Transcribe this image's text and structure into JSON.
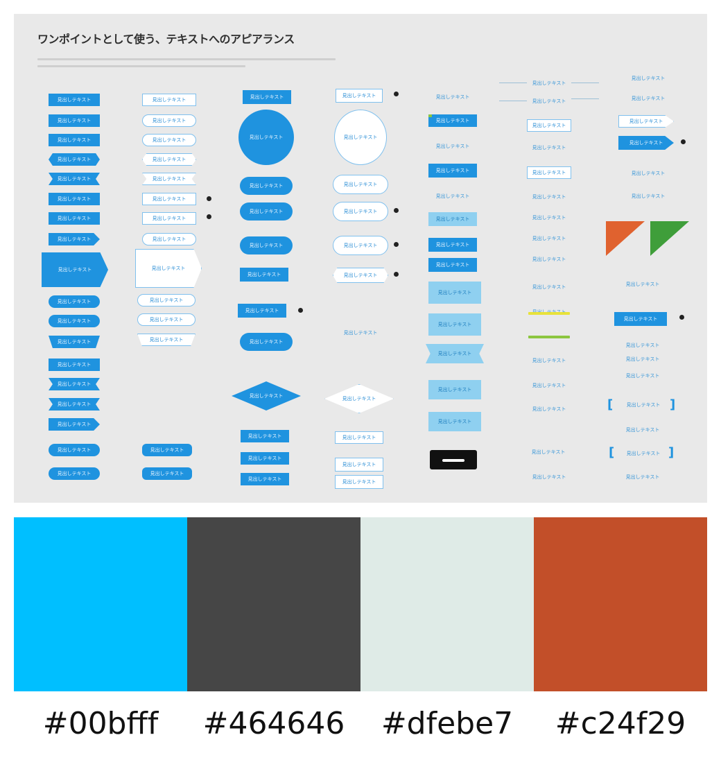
{
  "sheet": {
    "title": "ワンポイントとして使う、テキストへのアピアランス",
    "sample_text": "見出しテキスト"
  },
  "palette": [
    {
      "hex": "#00bfff",
      "label": "#00bfff"
    },
    {
      "hex": "#464646",
      "label": "#464646"
    },
    {
      "hex": "#dfebe7",
      "label": "#dfebe7"
    },
    {
      "hex": "#c24f29",
      "label": "#c24f29"
    }
  ],
  "colors": {
    "accent_blue": "#1f93df",
    "light_blue": "#8fd0f0",
    "corner_orange": "#e0622f",
    "corner_green": "#3f9e3a",
    "highlight_yellow": "#e8e23a",
    "highlight_green": "#8cc63f",
    "sheet_background": "#e9e9e9"
  }
}
